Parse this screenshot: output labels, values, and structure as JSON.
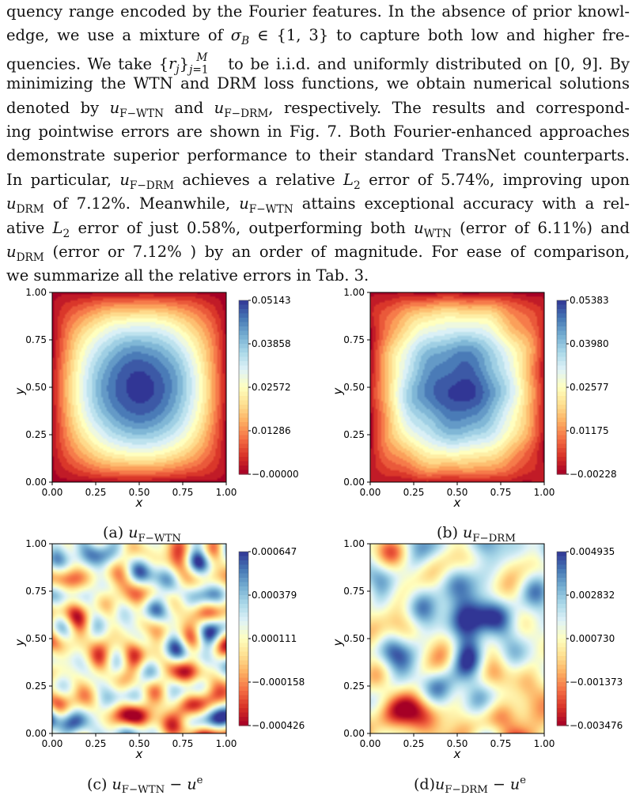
{
  "paragraph": {
    "lines": [
      "quency range encoded by the Fourier features. In the absence of prior knowl-",
      "edge, we use a mixture of σ_B ∈ {1, 3} to capture both low and higher fre-",
      "quencies. We take {r_j}_{j=1}^M to be i.i.d. and uniformly distributed on [0, 9]. By",
      "minimizing the WTN and DRM loss functions, we obtain numerical solutions",
      "denoted by u_F−WTN and u_F−DRM, respectively. The results and correspond-",
      "ing pointwise errors are shown in Fig. 7. Both Fourier-enhanced approaches",
      "demonstrate superior performance to their standard TransNet counterparts.",
      "In particular, u_F−DRM achieves a relative L_2 error of 5.74%, improving upon",
      "u_DRM of 7.12%. Meanwhile, u_F−WTN attains exceptional accuracy with a rel-",
      "ative L_2 error of just 0.58%, outperforming both u_WTN (error of 6.11%) and",
      "u_DRM (error or 7.12% ) by an order of magnitude. For ease of comparison,",
      "we summarize all the relative errors in Tab. 3."
    ]
  },
  "figure": {
    "panels": [
      {
        "id": "a",
        "caption": "(a) u_F−WTN",
        "xlabel": "x",
        "ylabel": "y",
        "xticks": [
          "0.00",
          "0.25",
          "0.50",
          "0.75",
          "1.00"
        ],
        "yticks": [
          "0.00",
          "0.25",
          "0.50",
          "0.75",
          "1.00"
        ],
        "colorbar_ticks": [
          "0.05143",
          "0.03858",
          "0.02572",
          "0.01286",
          "−0.00000"
        ],
        "pattern": "bowl"
      },
      {
        "id": "b",
        "caption": "(b) u_F−DRM",
        "xlabel": "x",
        "ylabel": "y",
        "xticks": [
          "0.00",
          "0.25",
          "0.50",
          "0.75",
          "1.00"
        ],
        "yticks": [
          "0.00",
          "0.25",
          "0.50",
          "0.75",
          "1.00"
        ],
        "colorbar_ticks": [
          "0.05383",
          "0.03980",
          "0.02577",
          "0.01175",
          "−0.00228"
        ],
        "pattern": "bowl-noisy"
      },
      {
        "id": "c",
        "caption": "(c) u_F−WTN − u^e",
        "xlabel": "x",
        "ylabel": "y",
        "xticks": [
          "0.00",
          "0.25",
          "0.50",
          "0.75",
          "1.00"
        ],
        "yticks": [
          "0.00",
          "0.25",
          "0.50",
          "0.75",
          "1.00"
        ],
        "colorbar_ticks": [
          "0.000647",
          "0.000379",
          "0.000111",
          "−0.000158",
          "−0.000426"
        ],
        "pattern": "error-fine"
      },
      {
        "id": "d",
        "caption": "(d)u_F−DRM − u^e",
        "xlabel": "x",
        "ylabel": "y",
        "xticks": [
          "0.00",
          "0.25",
          "0.50",
          "0.75",
          "1.00"
        ],
        "yticks": [
          "0.00",
          "0.25",
          "0.50",
          "0.75",
          "1.00"
        ],
        "colorbar_ticks": [
          "0.004935",
          "0.002832",
          "0.000730",
          "−0.001373",
          "−0.003476"
        ],
        "pattern": "error-coarse"
      }
    ]
  },
  "colormap": [
    "#a50026",
    "#d73027",
    "#f46d43",
    "#fdae61",
    "#fee090",
    "#ffffbf",
    "#e0f3f8",
    "#abd9e9",
    "#74add1",
    "#4575b4",
    "#313695"
  ]
}
